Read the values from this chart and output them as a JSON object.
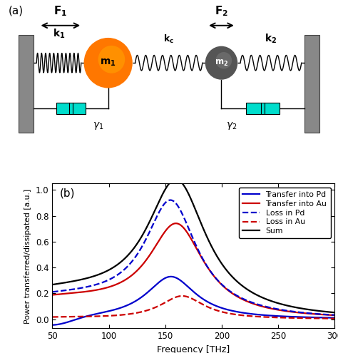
{
  "freq_min": 50,
  "freq_max": 300,
  "y_min": -0.07,
  "y_max": 1.05,
  "xlabel": "Frequency [THz]",
  "ylabel": "Power transferred/dissipated [a.u.]",
  "legend_entries": [
    "Transfer into Pd",
    "Transfer into Au",
    "Loss in Pd",
    "Loss in Au",
    "Sum"
  ],
  "line_colors_solid": [
    "#0000cc",
    "#cc0000",
    "#000000"
  ],
  "line_colors_dashed": [
    "#0000cc",
    "#cc0000"
  ],
  "background_color": "#ffffff",
  "panel_a_label": "(a)",
  "panel_b_label": "(b)",
  "yticks": [
    0.0,
    0.2,
    0.4,
    0.6,
    0.8,
    1.0
  ],
  "xticks": [
    50,
    100,
    150,
    200,
    250,
    300
  ],
  "wall_color": "#888888",
  "damper_color": "#00DDCC",
  "mass1_color": "#FF7700",
  "mass2_color": "#555555"
}
